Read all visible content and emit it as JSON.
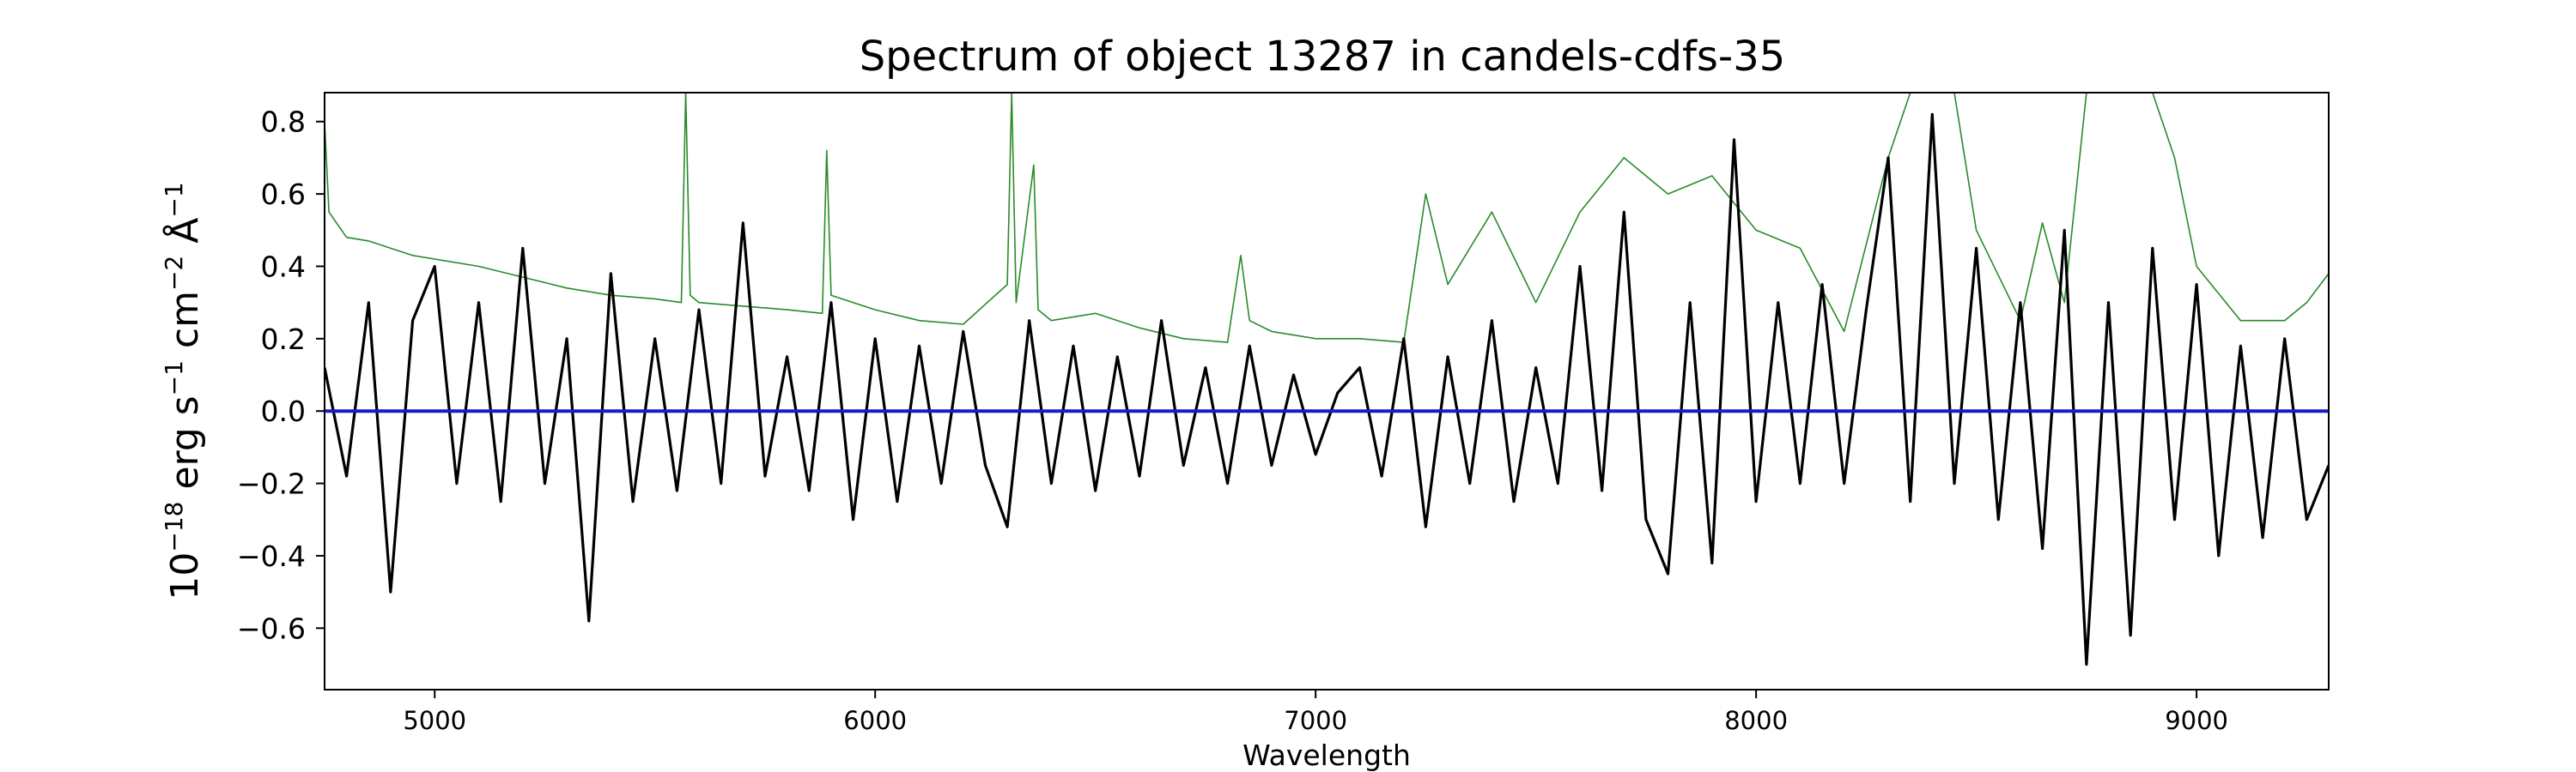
{
  "chart_data": {
    "type": "line",
    "title": "Spectrum of object 13287 in candels-cdfs-35",
    "xlabel": "Wavelength",
    "ylabel": {
      "base": "10",
      "exp": "−18",
      "mid1": " erg s",
      "exp1": "−1",
      "mid2": " cm",
      "exp2": "−2",
      "mid3": " Å",
      "exp3": "−1"
    },
    "xlim": [
      4750,
      9300
    ],
    "ylim": [
      -0.77,
      0.88
    ],
    "xticks": [
      5000,
      6000,
      7000,
      8000,
      9000
    ],
    "xtick_labels": [
      "5000",
      "6000",
      "7000",
      "8000",
      "9000"
    ],
    "yticks": [
      -0.6,
      -0.4,
      -0.2,
      0.0,
      0.2,
      0.4,
      0.6,
      0.8
    ],
    "ytick_labels": [
      "−0.6",
      "−0.4",
      "−0.2",
      "0.0",
      "0.2",
      "0.4",
      "0.6",
      "0.8"
    ],
    "grid": false,
    "colors": {
      "flux": "#000000",
      "error": "#2a8a2a",
      "model": "#1a1acc",
      "frame": "#000000"
    },
    "series": [
      {
        "role": "flux",
        "x": [
          4750,
          4800,
          4850,
          4900,
          4950,
          5000,
          5050,
          5100,
          5150,
          5200,
          5250,
          5300,
          5350,
          5400,
          5450,
          5500,
          5550,
          5600,
          5650,
          5700,
          5750,
          5800,
          5850,
          5900,
          5950,
          6000,
          6050,
          6100,
          6150,
          6200,
          6250,
          6300,
          6350,
          6400,
          6450,
          6500,
          6550,
          6600,
          6650,
          6700,
          6750,
          6800,
          6850,
          6900,
          6950,
          7000,
          7050,
          7100,
          7150,
          7200,
          7250,
          7300,
          7350,
          7400,
          7450,
          7500,
          7550,
          7600,
          7650,
          7700,
          7750,
          7800,
          7850,
          7900,
          7950,
          8000,
          8050,
          8100,
          8150,
          8200,
          8250,
          8300,
          8350,
          8400,
          8450,
          8500,
          8550,
          8600,
          8650,
          8700,
          8750,
          8800,
          8850,
          8900,
          8950,
          9000,
          9050,
          9100,
          9150,
          9200,
          9250,
          9300
        ],
        "y": [
          0.12,
          -0.18,
          0.3,
          -0.5,
          0.25,
          0.4,
          -0.2,
          0.3,
          -0.25,
          0.45,
          -0.2,
          0.2,
          -0.58,
          0.38,
          -0.25,
          0.2,
          -0.22,
          0.28,
          -0.2,
          0.52,
          -0.18,
          0.15,
          -0.22,
          0.3,
          -0.3,
          0.2,
          -0.25,
          0.18,
          -0.2,
          0.22,
          -0.15,
          -0.32,
          0.25,
          -0.2,
          0.18,
          -0.22,
          0.15,
          -0.18,
          0.25,
          -0.15,
          0.12,
          -0.2,
          0.18,
          -0.15,
          0.1,
          -0.12,
          0.05,
          0.12,
          -0.18,
          0.2,
          -0.32,
          0.15,
          -0.2,
          0.25,
          -0.25,
          0.12,
          -0.2,
          0.4,
          -0.22,
          0.55,
          -0.3,
          -0.45,
          0.3,
          -0.42,
          0.75,
          -0.25,
          0.3,
          -0.2,
          0.35,
          -0.2,
          0.28,
          0.7,
          -0.25,
          0.82,
          -0.2,
          0.45,
          -0.3,
          0.3,
          -0.38,
          0.5,
          -0.7,
          0.3,
          -0.62,
          0.45,
          -0.3,
          0.35,
          -0.4,
          0.18,
          -0.35,
          0.2,
          -0.3,
          -0.15
        ]
      },
      {
        "role": "error",
        "x": [
          4750,
          4760,
          4800,
          4850,
          4900,
          4950,
          5000,
          5100,
          5200,
          5300,
          5400,
          5500,
          5560,
          5570,
          5580,
          5600,
          5700,
          5800,
          5880,
          5890,
          5900,
          5950,
          6000,
          6100,
          6200,
          6300,
          6310,
          6320,
          6360,
          6370,
          6400,
          6500,
          6600,
          6700,
          6800,
          6830,
          6850,
          6900,
          7000,
          7100,
          7200,
          7250,
          7300,
          7400,
          7500,
          7600,
          7700,
          7800,
          7900,
          8000,
          8100,
          8200,
          8300,
          8350,
          8400,
          8450,
          8500,
          8600,
          8650,
          8700,
          8750,
          8800,
          8850,
          8900,
          8950,
          9000,
          9100,
          9200,
          9250,
          9300
        ],
        "y": [
          0.8,
          0.55,
          0.48,
          0.47,
          0.45,
          0.43,
          0.42,
          0.4,
          0.37,
          0.34,
          0.32,
          0.31,
          0.3,
          0.88,
          0.32,
          0.3,
          0.29,
          0.28,
          0.27,
          0.72,
          0.32,
          0.3,
          0.28,
          0.25,
          0.24,
          0.35,
          0.88,
          0.3,
          0.68,
          0.28,
          0.25,
          0.27,
          0.23,
          0.2,
          0.19,
          0.43,
          0.25,
          0.22,
          0.2,
          0.2,
          0.19,
          0.6,
          0.35,
          0.55,
          0.3,
          0.55,
          0.7,
          0.6,
          0.65,
          0.5,
          0.45,
          0.22,
          0.7,
          0.88,
          0.88,
          0.88,
          0.5,
          0.25,
          0.52,
          0.3,
          0.88,
          0.88,
          0.88,
          0.88,
          0.7,
          0.4,
          0.25,
          0.25,
          0.3,
          0.38
        ]
      },
      {
        "role": "model",
        "x": [
          4750,
          9300
        ],
        "y": [
          0.0,
          0.0
        ]
      }
    ]
  }
}
